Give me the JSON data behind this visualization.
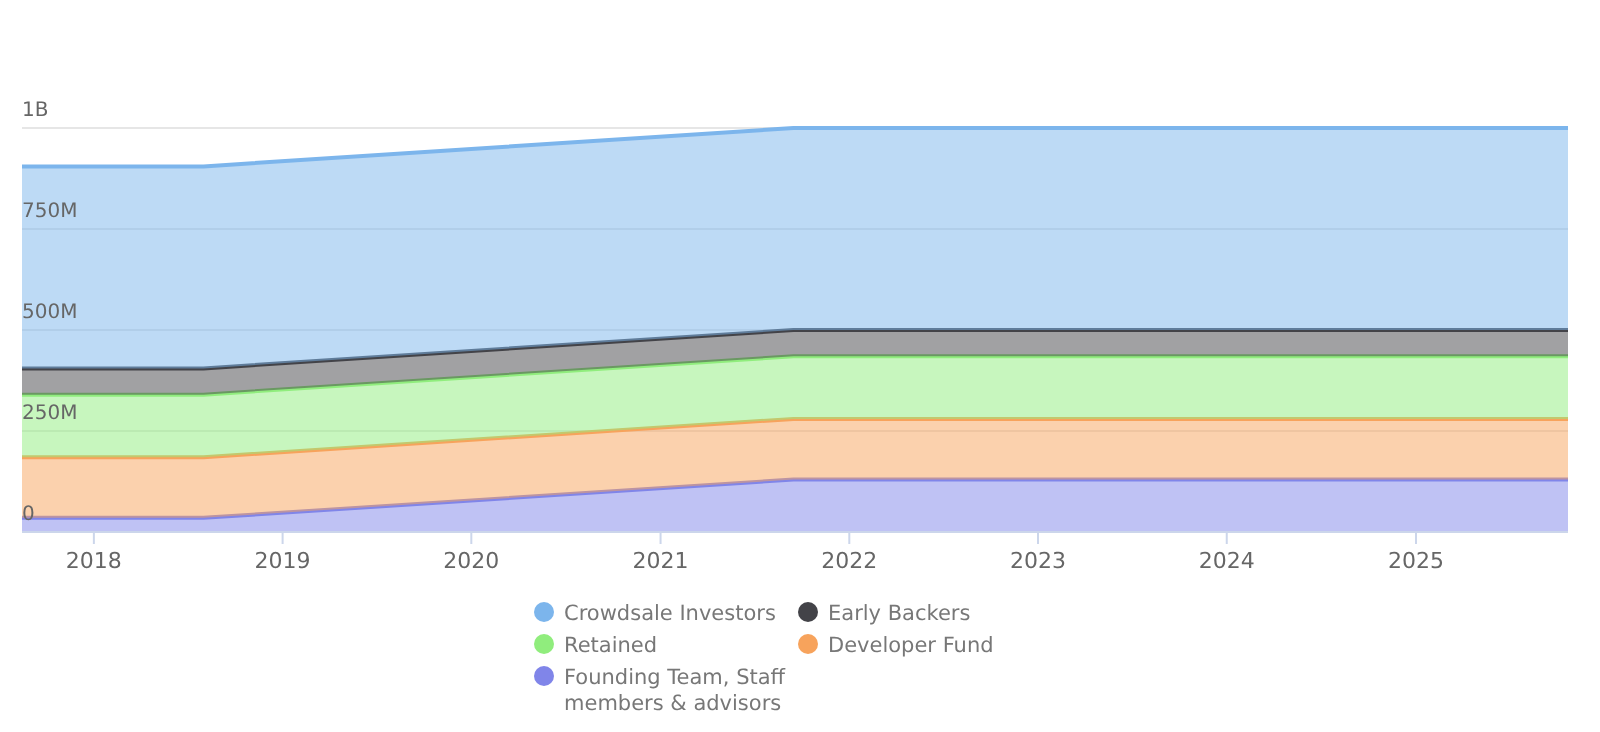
{
  "chart_data": {
    "type": "area",
    "stacked": true,
    "x": [
      "2017-08-15",
      "2018-08-01",
      "2021-09-15",
      "2025-10-22"
    ],
    "series": [
      {
        "name": "Founding Team, Staff members & advisors",
        "color": "#8085e9",
        "values": [
          35000000,
          35000000,
          130000000,
          130000000
        ]
      },
      {
        "name": "Developer Fund",
        "color": "#f7a35c",
        "values": [
          150000000,
          150000000,
          150000000,
          150000000
        ]
      },
      {
        "name": "Retained",
        "color": "#90ed7d",
        "values": [
          155000000,
          155000000,
          155000000,
          155000000
        ]
      },
      {
        "name": "Early Backers",
        "color": "#434348",
        "values": [
          65000000,
          65000000,
          65000000,
          65000000
        ]
      },
      {
        "name": "Crowdsale Investors",
        "color": "#7cb5ec",
        "values": [
          500000000,
          500000000,
          500000000,
          500000000
        ]
      }
    ],
    "xlim": [
      "2017-08-15",
      "2025-10-22"
    ],
    "xticks": [
      "2018",
      "2019",
      "2020",
      "2021",
      "2022",
      "2023",
      "2024",
      "2025"
    ],
    "ylim": [
      0,
      1000000000
    ],
    "yticks": [
      0,
      {
        "value": 250000000,
        "label": "250M"
      },
      {
        "value": 500000000,
        "label": "500M"
      },
      {
        "value": 750000000,
        "label": "750M"
      },
      {
        "value": 1000000000,
        "label": "1B"
      }
    ],
    "grid": "y",
    "legend": "bottom"
  }
}
